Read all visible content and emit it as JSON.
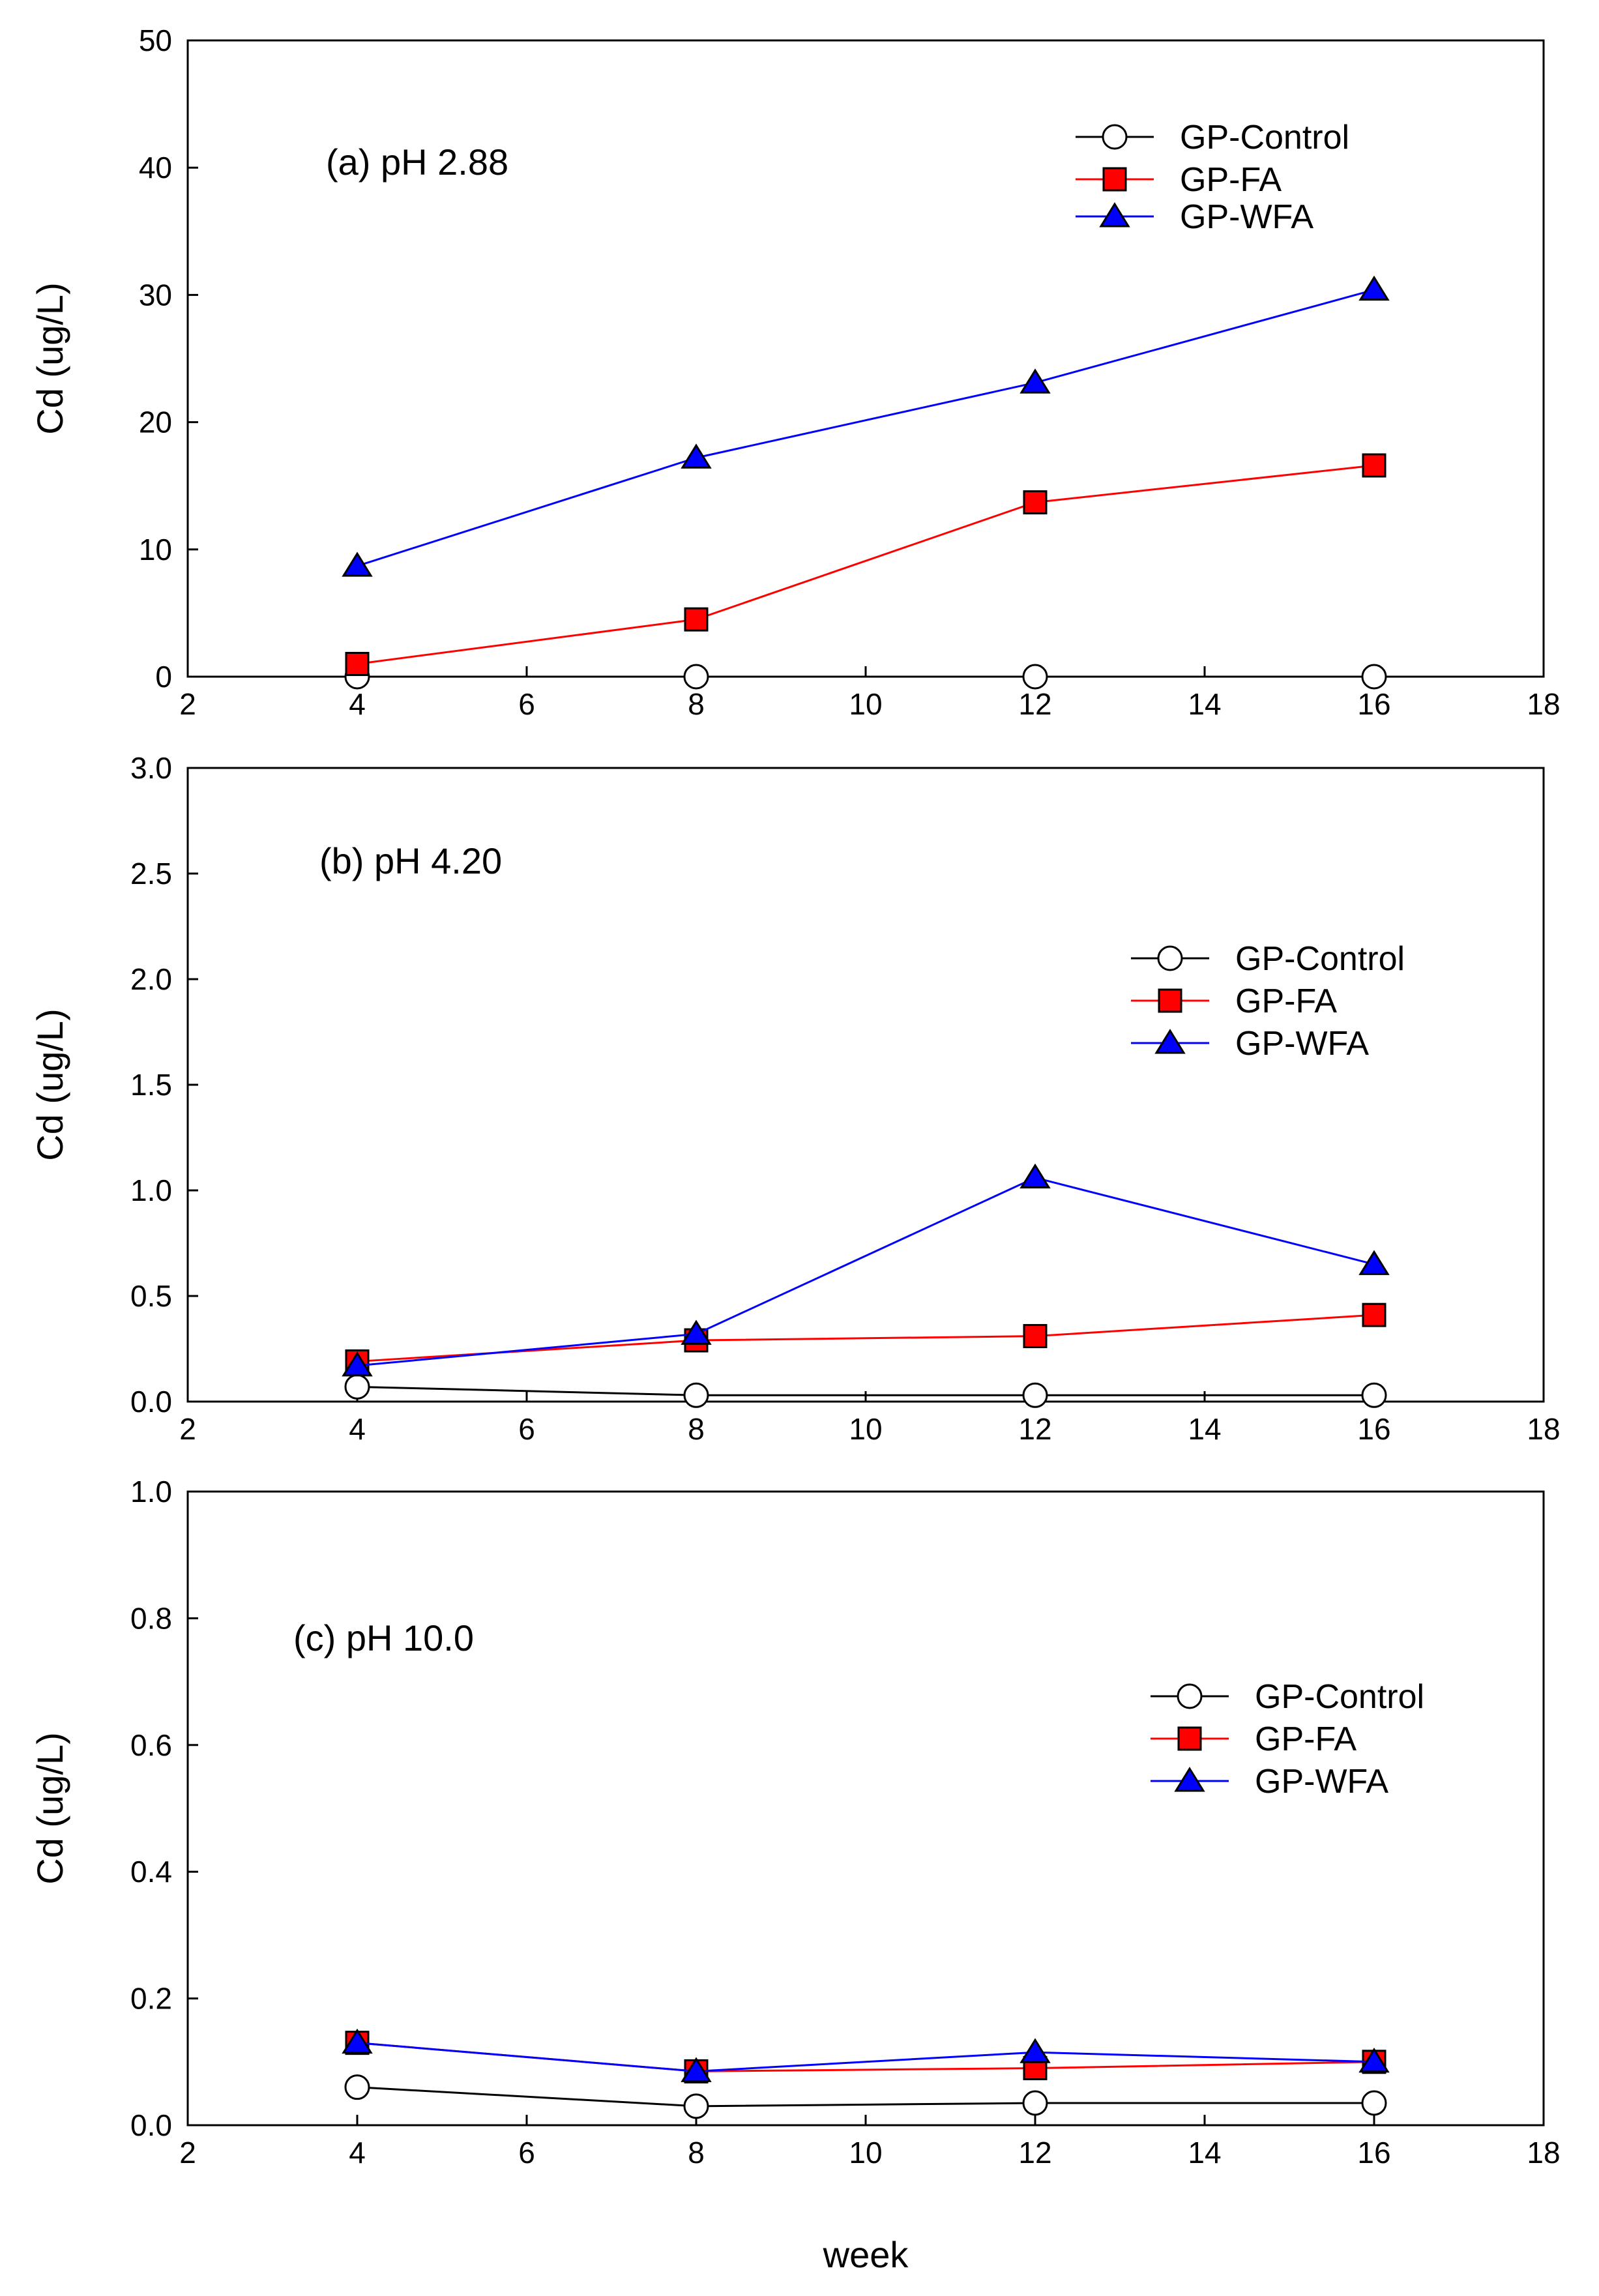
{
  "chart_data": [
    {
      "type": "line",
      "annotation": "(a) pH  2.88",
      "x": [
        4,
        8,
        12,
        16
      ],
      "xlim": [
        2,
        18
      ],
      "xticks": [
        2,
        4,
        6,
        8,
        10,
        12,
        14,
        16,
        18
      ],
      "ylim": [
        0,
        50
      ],
      "yticks": [
        0,
        10,
        20,
        30,
        40,
        50
      ],
      "ytick_labels": [
        "0",
        "10",
        "20",
        "30",
        "40",
        "50"
      ],
      "ylabel": "Cd (ug/L)",
      "legend_position": "top-right",
      "series": [
        {
          "name": "GP-Control",
          "values": [
            0,
            0,
            0,
            0
          ]
        },
        {
          "name": "GP-FA",
          "values": [
            1.0,
            4.5,
            13.7,
            16.6
          ]
        },
        {
          "name": "GP-WFA",
          "values": [
            8.7,
            17.2,
            23.1,
            30.4
          ]
        }
      ]
    },
    {
      "type": "line",
      "annotation": "(b) pH 4.20",
      "x": [
        4,
        8,
        12,
        16
      ],
      "xlim": [
        2,
        18
      ],
      "xticks": [
        2,
        4,
        6,
        8,
        10,
        12,
        14,
        16,
        18
      ],
      "ylim": [
        0,
        3.0
      ],
      "yticks": [
        0,
        0.5,
        1.0,
        1.5,
        2.0,
        2.5,
        3.0
      ],
      "ytick_labels": [
        "0.0",
        "0.5",
        "1.0",
        "1.5",
        "2.0",
        "2.5",
        "3.0"
      ],
      "ylabel": "Cd (ug/L)",
      "legend_position": "right",
      "series": [
        {
          "name": "GP-Control",
          "values": [
            0.07,
            0.03,
            0.03,
            0.03
          ]
        },
        {
          "name": "GP-FA",
          "values": [
            0.19,
            0.29,
            0.31,
            0.41
          ]
        },
        {
          "name": "GP-WFA",
          "values": [
            0.17,
            0.32,
            1.06,
            0.65
          ]
        }
      ]
    },
    {
      "type": "line",
      "annotation": "(c) pH 10.0",
      "x": [
        4,
        8,
        12,
        16
      ],
      "xlim": [
        2,
        18
      ],
      "xticks": [
        2,
        4,
        6,
        8,
        10,
        12,
        14,
        16,
        18
      ],
      "ylim": [
        0,
        1.0
      ],
      "yticks": [
        0,
        0.2,
        0.4,
        0.6,
        0.8,
        1.0
      ],
      "ytick_labels": [
        "0.0",
        "0.2",
        "0.4",
        "0.6",
        "0.8",
        "1.0"
      ],
      "ylabel": "Cd (ug/L)",
      "xlabel": "week",
      "legend_position": "right",
      "series": [
        {
          "name": "GP-Control",
          "values": [
            0.06,
            0.03,
            0.035,
            0.035
          ]
        },
        {
          "name": "GP-FA",
          "values": [
            0.13,
            0.085,
            0.09,
            0.1
          ]
        },
        {
          "name": "GP-WFA",
          "values": [
            0.13,
            0.085,
            0.115,
            0.1
          ]
        }
      ]
    }
  ],
  "series_styles": [
    {
      "name": "GP-Control",
      "line_color": "#000000",
      "marker": "circle",
      "marker_fill": "#ffffff"
    },
    {
      "name": "GP-FA",
      "line_color": "#ff0000",
      "marker": "square",
      "marker_fill": "#ff0000"
    },
    {
      "name": "GP-WFA",
      "line_color": "#0000ff",
      "marker": "triangle",
      "marker_fill": "#0000ff"
    }
  ]
}
